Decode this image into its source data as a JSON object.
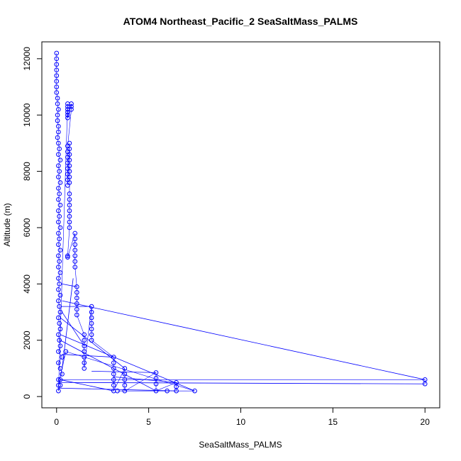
{
  "chart_data": {
    "type": "scatter",
    "title": "ATOM4 Northeast_Pacific_2 SeaSaltMass_PALMS",
    "xlabel": "SeaSaltMass_PALMS",
    "ylabel": "Altitude (m)",
    "xlim": [
      -0.8,
      20.8
    ],
    "ylim": [
      -400,
      12600
    ],
    "xticks": [
      0,
      5,
      10,
      15,
      20
    ],
    "yticks": [
      0,
      2000,
      4000,
      6000,
      8000,
      10000,
      12000
    ],
    "color": "#0000ff",
    "grid": false,
    "connect_points": true,
    "series": [
      {
        "points": [
          [
            0.0,
            12200
          ],
          [
            0.0,
            12000
          ],
          [
            0.0,
            11800
          ],
          [
            0.0,
            11600
          ],
          [
            0.0,
            11400
          ],
          [
            0.0,
            11200
          ],
          [
            0.0,
            11000
          ],
          [
            0.0,
            10800
          ],
          [
            0.05,
            10600
          ],
          [
            0.05,
            10400
          ],
          [
            0.1,
            10200
          ],
          [
            0.05,
            10000
          ],
          [
            0.05,
            9800
          ],
          [
            0.1,
            9600
          ],
          [
            0.1,
            9400
          ],
          [
            0.05,
            9200
          ],
          [
            0.1,
            9000
          ],
          [
            0.15,
            8800
          ],
          [
            0.1,
            8600
          ],
          [
            0.2,
            8400
          ],
          [
            0.1,
            8200
          ],
          [
            0.15,
            8000
          ],
          [
            0.1,
            7800
          ],
          [
            0.2,
            7600
          ],
          [
            0.1,
            7400
          ],
          [
            0.15,
            7200
          ],
          [
            0.1,
            7000
          ],
          [
            0.2,
            6800
          ],
          [
            0.1,
            6600
          ],
          [
            0.15,
            6400
          ],
          [
            0.1,
            6200
          ],
          [
            0.2,
            6000
          ],
          [
            0.1,
            5800
          ],
          [
            0.15,
            5600
          ],
          [
            0.1,
            5400
          ],
          [
            0.2,
            5200
          ],
          [
            0.1,
            5000
          ],
          [
            0.15,
            4800
          ],
          [
            0.1,
            4600
          ],
          [
            0.2,
            4400
          ],
          [
            0.1,
            4200
          ],
          [
            0.15,
            4000
          ],
          [
            0.1,
            3800
          ],
          [
            0.2,
            3600
          ],
          [
            0.1,
            3400
          ],
          [
            0.15,
            3200
          ],
          [
            0.2,
            3000
          ],
          [
            0.1,
            2800
          ],
          [
            0.15,
            2600
          ],
          [
            0.2,
            2400
          ],
          [
            0.1,
            2200
          ],
          [
            0.15,
            2000
          ],
          [
            0.2,
            1800
          ],
          [
            0.1,
            1600
          ],
          [
            0.3,
            1400
          ],
          [
            0.1,
            1200
          ],
          [
            0.2,
            1000
          ],
          [
            0.3,
            800
          ],
          [
            0.1,
            600
          ],
          [
            0.2,
            400
          ],
          [
            0.1,
            200
          ],
          [
            0.6,
            10400
          ],
          [
            0.6,
            10300
          ],
          [
            0.6,
            10200
          ],
          [
            0.6,
            10100
          ],
          [
            0.6,
            10000
          ],
          [
            0.6,
            9900
          ],
          [
            0.8,
            10400
          ],
          [
            0.8,
            10300
          ],
          [
            0.8,
            10200
          ],
          [
            0.6,
            8900
          ],
          [
            0.6,
            8700
          ],
          [
            0.6,
            8500
          ],
          [
            0.6,
            8300
          ],
          [
            0.6,
            8100
          ],
          [
            0.6,
            7900
          ],
          [
            0.6,
            7700
          ],
          [
            0.6,
            7500
          ],
          [
            0.7,
            9000
          ],
          [
            0.7,
            8800
          ],
          [
            0.7,
            8600
          ],
          [
            0.7,
            8400
          ],
          [
            0.7,
            8200
          ],
          [
            0.7,
            8000
          ],
          [
            0.7,
            7800
          ],
          [
            0.7,
            7600
          ],
          [
            0.7,
            7200
          ],
          [
            0.7,
            7000
          ],
          [
            0.7,
            6800
          ],
          [
            0.7,
            6600
          ],
          [
            0.7,
            6400
          ],
          [
            0.7,
            6200
          ],
          [
            0.7,
            6000
          ],
          [
            0.6,
            5000
          ],
          [
            0.6,
            4950
          ],
          [
            1.0,
            5800
          ],
          [
            1.0,
            5600
          ],
          [
            1.0,
            5400
          ],
          [
            1.0,
            5200
          ],
          [
            1.0,
            5000
          ],
          [
            1.0,
            4800
          ],
          [
            1.0,
            4600
          ],
          [
            1.1,
            3900
          ],
          [
            1.1,
            3700
          ],
          [
            1.1,
            3500
          ],
          [
            1.1,
            3300
          ],
          [
            1.1,
            3100
          ],
          [
            1.1,
            2900
          ],
          [
            1.5,
            2200
          ],
          [
            1.5,
            2000
          ],
          [
            1.5,
            1800
          ],
          [
            1.5,
            1600
          ],
          [
            1.5,
            1400
          ],
          [
            1.5,
            1200
          ],
          [
            1.5,
            1000
          ],
          [
            1.9,
            3200
          ],
          [
            1.9,
            3000
          ],
          [
            1.9,
            2800
          ],
          [
            1.9,
            2600
          ],
          [
            1.9,
            2400
          ],
          [
            1.9,
            2200
          ],
          [
            1.9,
            2000
          ],
          [
            3.1,
            1400
          ],
          [
            3.1,
            1200
          ],
          [
            3.1,
            1000
          ],
          [
            3.1,
            800
          ],
          [
            3.1,
            600
          ],
          [
            3.1,
            400
          ],
          [
            3.1,
            200
          ],
          [
            3.7,
            1000
          ],
          [
            3.7,
            800
          ],
          [
            3.7,
            600
          ],
          [
            3.7,
            400
          ],
          [
            3.7,
            200
          ],
          [
            5.4,
            850
          ],
          [
            5.4,
            650
          ],
          [
            5.4,
            450
          ],
          [
            5.4,
            200
          ],
          [
            6.5,
            500
          ],
          [
            6.5,
            350
          ],
          [
            6.5,
            200
          ],
          [
            3.3,
            200
          ],
          [
            6.0,
            200
          ],
          [
            7.5,
            200
          ],
          [
            0.5,
            1600
          ],
          [
            0.1,
            400
          ],
          [
            0.2,
            600
          ],
          [
            20.0,
            600
          ],
          [
            20.0,
            450
          ]
        ]
      }
    ],
    "connectors": [
      [
        [
          0.2,
          2200
        ],
        [
          7.5,
          200
        ]
      ],
      [
        [
          0.3,
          3400
        ],
        [
          20.0,
          600
        ]
      ],
      [
        [
          0.1,
          500
        ],
        [
          20.0,
          450
        ]
      ],
      [
        [
          0.3,
          1500
        ],
        [
          3.1,
          1400
        ]
      ],
      [
        [
          0.2,
          3200
        ],
        [
          1.9,
          3200
        ]
      ],
      [
        [
          0.3,
          4000
        ],
        [
          1.1,
          3900
        ]
      ],
      [
        [
          0.3,
          3000
        ],
        [
          1.5,
          1800
        ]
      ],
      [
        [
          0.2,
          2800
        ],
        [
          3.7,
          1000
        ]
      ],
      [
        [
          1.9,
          900
        ],
        [
          5.4,
          850
        ]
      ],
      [
        [
          3.1,
          700
        ],
        [
          6.5,
          500
        ]
      ],
      [
        [
          0.2,
          600
        ],
        [
          3.1,
          200
        ]
      ],
      [
        [
          0.3,
          1000
        ],
        [
          0.9,
          4200
        ]
      ],
      [
        [
          0.2,
          2000
        ],
        [
          5.4,
          200
        ]
      ],
      [
        [
          0.1,
          300
        ],
        [
          6.5,
          200
        ]
      ]
    ]
  }
}
